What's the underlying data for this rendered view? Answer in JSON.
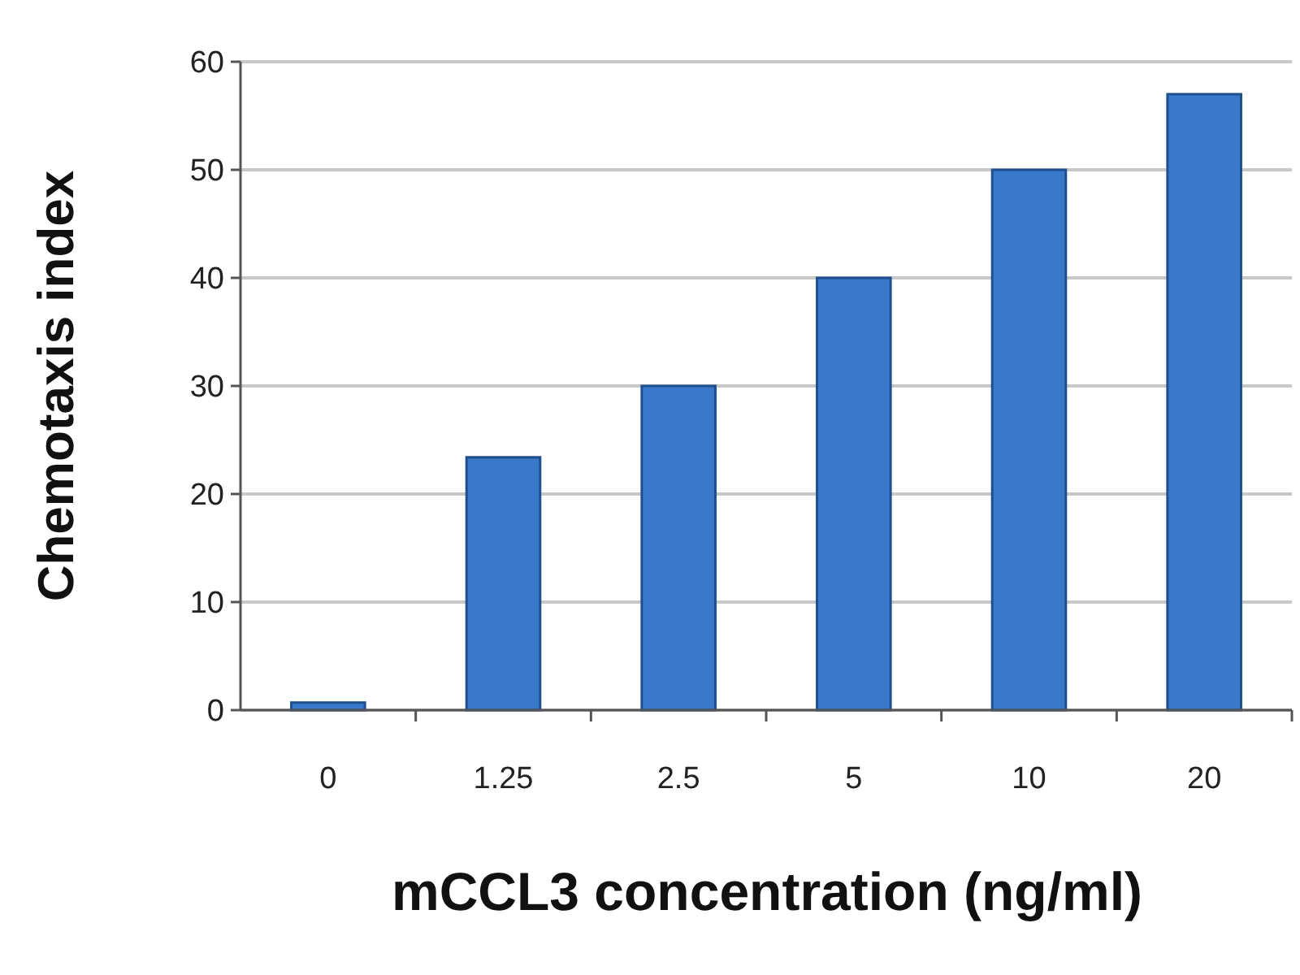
{
  "chart_data": {
    "type": "bar",
    "xlabel": "mCCL3  concentration (ng/ml)",
    "ylabel": "Chemotaxis index",
    "categories": [
      "0",
      "1.25",
      "2.5",
      "5",
      "10",
      "20"
    ],
    "values": [
      0.7,
      23.4,
      30,
      40,
      50,
      57
    ],
    "color": "#3a78c9",
    "ylim": [
      0,
      60
    ],
    "yticks": [
      0,
      10,
      20,
      30,
      40,
      50,
      60
    ],
    "grid": true
  }
}
